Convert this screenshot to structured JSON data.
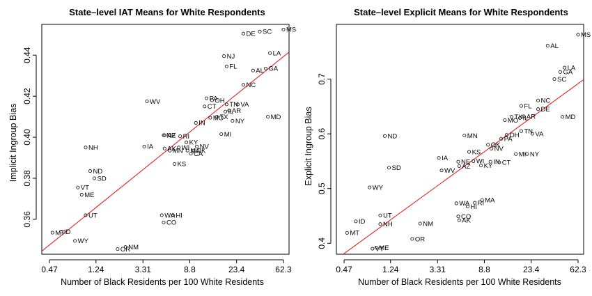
{
  "chart_data": [
    {
      "type": "scatter",
      "title": "State–level IAT Means for White Respondents",
      "xlabel": "Number of Black Residents per 100 White Residents",
      "ylabel": "Implicit Ingroup Bias",
      "x_scale": "log",
      "x_ticks": [
        0.47,
        1.24,
        3.31,
        8.8,
        23.4,
        62.3
      ],
      "x_tick_labels": [
        "0.47",
        "1.24",
        "3.31",
        "8.8",
        "23.4",
        "62.3"
      ],
      "y_ticks": [
        0.36,
        0.38,
        0.4,
        0.42,
        0.44
      ],
      "y_tick_labels": [
        "0.36",
        "0.38",
        "0.40",
        "0.42",
        "0.44"
      ],
      "xlim": [
        0.4,
        70
      ],
      "ylim": [
        0.343,
        0.455
      ],
      "fit_line": [
        [
          0.4,
          0.3445
        ],
        [
          70,
          0.4415
        ]
      ],
      "points": [
        {
          "label": "MS",
          "x": 62.3,
          "y": 0.4525
        },
        {
          "label": "DE",
          "x": 27.0,
          "y": 0.4505
        },
        {
          "label": "SC",
          "x": 38.0,
          "y": 0.4515
        },
        {
          "label": "LA",
          "x": 47.0,
          "y": 0.441
        },
        {
          "label": "NJ",
          "x": 18.0,
          "y": 0.4395
        },
        {
          "label": "FL",
          "x": 19.0,
          "y": 0.4345
        },
        {
          "label": "AL",
          "x": 33.0,
          "y": 0.4325
        },
        {
          "label": "GA",
          "x": 43.0,
          "y": 0.4335
        },
        {
          "label": "NC",
          "x": 27.0,
          "y": 0.4255
        },
        {
          "label": "WV",
          "x": 3.6,
          "y": 0.4175
        },
        {
          "label": "PA",
          "x": 12.5,
          "y": 0.419
        },
        {
          "label": "OH",
          "x": 14.0,
          "y": 0.418
        },
        {
          "label": "CT",
          "x": 12.0,
          "y": 0.415
        },
        {
          "label": "TN",
          "x": 19.0,
          "y": 0.416
        },
        {
          "label": "VA",
          "x": 24.0,
          "y": 0.416
        },
        {
          "label": "IL",
          "x": 18.5,
          "y": 0.4125
        },
        {
          "label": "AR",
          "x": 20.0,
          "y": 0.413
        },
        {
          "label": "MO",
          "x": 13.5,
          "y": 0.4095
        },
        {
          "label": "TX",
          "x": 15.5,
          "y": 0.41
        },
        {
          "label": "NY",
          "x": 21.5,
          "y": 0.408
        },
        {
          "label": "MD",
          "x": 45.0,
          "y": 0.41
        },
        {
          "label": "IN",
          "x": 10.0,
          "y": 0.407
        },
        {
          "label": "MI",
          "x": 17.0,
          "y": 0.4015
        },
        {
          "label": "NE",
          "x": 5.1,
          "y": 0.401
        },
        {
          "label": "AZ",
          "x": 5.2,
          "y": 0.401
        },
        {
          "label": "RI",
          "x": 7.2,
          "y": 0.4005
        },
        {
          "label": "KY",
          "x": 8.2,
          "y": 0.3975
        },
        {
          "label": "NV",
          "x": 10.2,
          "y": 0.3955
        },
        {
          "label": "WI",
          "x": 7.0,
          "y": 0.395
        },
        {
          "label": "IA",
          "x": 3.4,
          "y": 0.3955
        },
        {
          "label": "NH",
          "x": 1.0,
          "y": 0.395
        },
        {
          "label": "AK",
          "x": 5.2,
          "y": 0.3945
        },
        {
          "label": "MN",
          "x": 5.8,
          "y": 0.3935
        },
        {
          "label": "MA",
          "x": 8.4,
          "y": 0.3935
        },
        {
          "label": "OK",
          "x": 9.5,
          "y": 0.3935
        },
        {
          "label": "CA",
          "x": 9.0,
          "y": 0.392
        },
        {
          "label": "KS",
          "x": 6.4,
          "y": 0.387
        },
        {
          "label": "ND",
          "x": 1.1,
          "y": 0.3835
        },
        {
          "label": "SD",
          "x": 1.2,
          "y": 0.38
        },
        {
          "label": "VT",
          "x": 0.85,
          "y": 0.3755
        },
        {
          "label": "ME",
          "x": 0.92,
          "y": 0.372
        },
        {
          "label": "UT",
          "x": 1.0,
          "y": 0.362
        },
        {
          "label": "WA",
          "x": 4.9,
          "y": 0.362
        },
        {
          "label": "HI",
          "x": 6.2,
          "y": 0.362
        },
        {
          "label": "CO",
          "x": 5.1,
          "y": 0.3585
        },
        {
          "label": "MT",
          "x": 0.5,
          "y": 0.3535
        },
        {
          "label": "ID",
          "x": 0.6,
          "y": 0.354
        },
        {
          "label": "WY",
          "x": 0.8,
          "y": 0.3495
        },
        {
          "label": "OR",
          "x": 1.95,
          "y": 0.3455
        },
        {
          "label": "NM",
          "x": 2.3,
          "y": 0.3465
        }
      ]
    },
    {
      "type": "scatter",
      "title": "State–level Explicit Means for White Respondents",
      "xlabel": "Number of Black Residents per 100 White Residents",
      "ylabel": "Explicit Ingroup Bias",
      "x_scale": "log",
      "x_ticks": [
        0.47,
        1.24,
        3.31,
        8.8,
        23.4,
        62.3
      ],
      "x_tick_labels": [
        "0.47",
        "1.24",
        "3.31",
        "8.8",
        "23.4",
        "62.3"
      ],
      "y_ticks": [
        0.4,
        0.5,
        0.6,
        0.7
      ],
      "y_tick_labels": [
        "0.4",
        "0.5",
        "0.6",
        "0.7"
      ],
      "xlim": [
        0.4,
        70
      ],
      "ylim": [
        0.38,
        0.8
      ],
      "fit_line": [
        [
          0.4,
          0.371
        ],
        [
          70,
          0.699
        ]
      ],
      "points": [
        {
          "label": "MS",
          "x": 62.3,
          "y": 0.781
        },
        {
          "label": "AL",
          "x": 33.0,
          "y": 0.761
        },
        {
          "label": "LA",
          "x": 47.0,
          "y": 0.721
        },
        {
          "label": "GA",
          "x": 43.0,
          "y": 0.713
        },
        {
          "label": "SC",
          "x": 38.0,
          "y": 0.7
        },
        {
          "label": "NC",
          "x": 27.0,
          "y": 0.661
        },
        {
          "label": "FL",
          "x": 19.0,
          "y": 0.651
        },
        {
          "label": "DE",
          "x": 27.0,
          "y": 0.645
        },
        {
          "label": "TX",
          "x": 15.5,
          "y": 0.631
        },
        {
          "label": "AR",
          "x": 20.0,
          "y": 0.632
        },
        {
          "label": "IL",
          "x": 18.5,
          "y": 0.629
        },
        {
          "label": "MO",
          "x": 13.5,
          "y": 0.625
        },
        {
          "label": "MD",
          "x": 45.0,
          "y": 0.631
        },
        {
          "label": "TN",
          "x": 19.0,
          "y": 0.605
        },
        {
          "label": "VA",
          "x": 24.0,
          "y": 0.6
        },
        {
          "label": "OH",
          "x": 14.0,
          "y": 0.598
        },
        {
          "label": "PA",
          "x": 12.5,
          "y": 0.591
        },
        {
          "label": "ND",
          "x": 1.1,
          "y": 0.596
        },
        {
          "label": "MN",
          "x": 5.8,
          "y": 0.597
        },
        {
          "label": "OK",
          "x": 9.5,
          "y": 0.58
        },
        {
          "label": "NV",
          "x": 10.2,
          "y": 0.573
        },
        {
          "label": "KS",
          "x": 6.4,
          "y": 0.567
        },
        {
          "label": "MI",
          "x": 17.0,
          "y": 0.563
        },
        {
          "label": "NY",
          "x": 21.5,
          "y": 0.563
        },
        {
          "label": "IA",
          "x": 3.4,
          "y": 0.556
        },
        {
          "label": "NE",
          "x": 5.1,
          "y": 0.549
        },
        {
          "label": "WI",
          "x": 7.0,
          "y": 0.55
        },
        {
          "label": "IN",
          "x": 10.0,
          "y": 0.549
        },
        {
          "label": "CT",
          "x": 12.0,
          "y": 0.548
        },
        {
          "label": "AZ",
          "x": 5.2,
          "y": 0.541
        },
        {
          "label": "KY",
          "x": 8.2,
          "y": 0.542
        },
        {
          "label": "SD",
          "x": 1.2,
          "y": 0.538
        },
        {
          "label": "WV",
          "x": 3.6,
          "y": 0.533
        },
        {
          "label": "WY",
          "x": 0.8,
          "y": 0.502
        },
        {
          "label": "WA",
          "x": 4.9,
          "y": 0.473
        },
        {
          "label": "MA",
          "x": 8.4,
          "y": 0.479
        },
        {
          "label": "RI",
          "x": 7.2,
          "y": 0.474
        },
        {
          "label": "HI",
          "x": 6.2,
          "y": 0.467
        },
        {
          "label": "UT",
          "x": 1.0,
          "y": 0.451
        },
        {
          "label": "CO",
          "x": 5.1,
          "y": 0.449
        },
        {
          "label": "AK",
          "x": 5.2,
          "y": 0.442
        },
        {
          "label": "ID",
          "x": 0.6,
          "y": 0.44
        },
        {
          "label": "NH",
          "x": 1.0,
          "y": 0.435
        },
        {
          "label": "NM",
          "x": 2.3,
          "y": 0.436
        },
        {
          "label": "MT",
          "x": 0.5,
          "y": 0.419
        },
        {
          "label": "OR",
          "x": 1.95,
          "y": 0.408
        },
        {
          "label": "VT",
          "x": 0.85,
          "y": 0.39
        },
        {
          "label": "ME",
          "x": 0.92,
          "y": 0.392
        }
      ]
    }
  ]
}
